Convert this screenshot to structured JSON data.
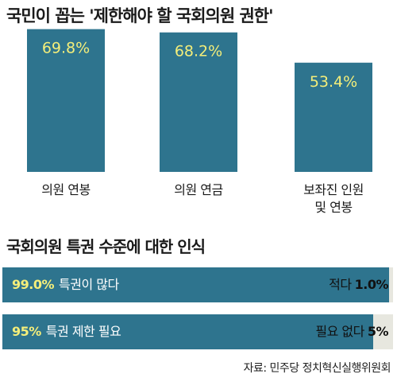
{
  "title": "국민이 꼽는 '제한해야 할 국회의원 권한'",
  "chart_data": [
    {
      "type": "bar",
      "categories": [
        "의원 연봉",
        "의원 연금",
        "보좌진 인원 및 연봉"
      ],
      "category_lines": [
        [
          "의원 연봉"
        ],
        [
          "의원 연금"
        ],
        [
          "보좌진 인원",
          "및 연봉"
        ]
      ],
      "values": [
        69.8,
        68.2,
        53.4
      ],
      "value_labels": [
        "69.8%",
        "68.2%",
        "53.4%"
      ],
      "ylim": [
        0,
        100
      ],
      "colors": {
        "bar": "#2e748e",
        "value_label": "#f4ee7a"
      }
    },
    {
      "type": "bar",
      "orientation": "horizontal",
      "section_title": "국회의원 특권 수준에 대한 인식",
      "rows": [
        {
          "left_value": "99.0%",
          "left_label": "특권이 많다",
          "right_label": "적다",
          "right_value": "1.0%",
          "value": 99.0
        },
        {
          "left_value": "95%",
          "left_label": "특권 제한 필요",
          "right_label": "필요 없다",
          "right_value": "5%",
          "value": 95
        }
      ],
      "colors": {
        "fill": "#2e748e",
        "track": "#e7e7df",
        "value_label": "#f4ee7a"
      }
    }
  ],
  "source": "자료: 민주당 정치혁신실행위원회"
}
